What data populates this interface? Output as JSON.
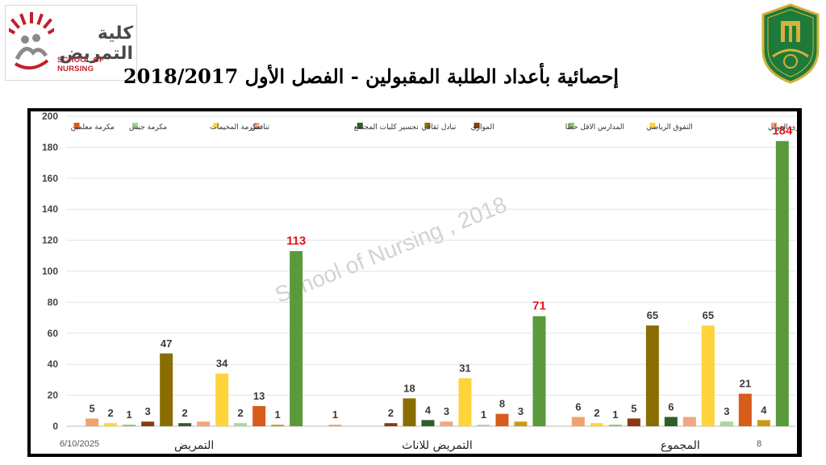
{
  "header": {
    "logo_arabic": "كلية التمريض",
    "logo_english": "SCHOOL OF NURSING",
    "title": "إحصائية بأعداد الطلبة المقبولين - الفصل الأول 2018/2017"
  },
  "watermark": "School of Nursing , 2018",
  "footer": {
    "date": "6/10/2025",
    "page": "8"
  },
  "colors": {
    "logo_red": "#c0202a",
    "emblem_green": "#1e7a3a",
    "emblem_gold": "#d4b13a",
    "highlight_label": "#e3151a"
  },
  "chart_data": {
    "type": "bar",
    "categories": [
      "التمريض",
      "التمريض للاناث",
      "المجموع"
    ],
    "ylim": [
      0,
      200
    ],
    "yticks": [
      0,
      20,
      40,
      60,
      80,
      100,
      120,
      140,
      160,
      180,
      200
    ],
    "grid": true,
    "legend_position": "top",
    "series": [
      {
        "name": "البرنامج الموازي الدولي",
        "color": "#f2a26b",
        "values": [
          5,
          1,
          6
        ],
        "labels": [
          "5",
          "1",
          "6"
        ]
      },
      {
        "name": "التفوق الرياضي",
        "color": "#ffd43b",
        "values": [
          2,
          0,
          2
        ],
        "labels": [
          "2",
          "",
          "2"
        ]
      },
      {
        "name": "المدارس الاقل حظا",
        "color": "#8dc96a",
        "values": [
          1,
          0,
          1
        ],
        "labels": [
          "1",
          "",
          "1"
        ]
      },
      {
        "name": "الموازي",
        "color": "#8b3a12",
        "values": [
          3,
          2,
          5
        ],
        "labels": [
          "3",
          "2",
          "5"
        ]
      },
      {
        "name": "تبادل ثقافي",
        "color": "#8a6d00",
        "values": [
          47,
          18,
          65
        ],
        "labels": [
          "47",
          "18",
          "65"
        ]
      },
      {
        "name": "تجسير كليات المجتمع",
        "color": "#2e5e2a",
        "values": [
          2,
          4,
          6
        ],
        "labels": [
          "2",
          "4",
          "6"
        ]
      },
      {
        "name": "تنافس",
        "color": "#f4a67e",
        "values": [
          3,
          3,
          6
        ],
        "labels": [
          "",
          "3",
          ""
        ]
      },
      {
        "name": "مكرمة المخيمات",
        "color": "#ffd43b",
        "values": [
          34,
          31,
          65
        ],
        "labels": [
          "34",
          "31",
          "65"
        ]
      },
      {
        "name": "مكرمة جيش",
        "color": "#a9d89a",
        "values": [
          2,
          1,
          3
        ],
        "labels": [
          "2",
          "1",
          "3"
        ]
      },
      {
        "name": "مكرمة معلمين",
        "color": "#d85c1a",
        "values": [
          13,
          8,
          21
        ],
        "labels": [
          "13",
          "8",
          "21"
        ]
      },
      {
        "name": "المجموع",
        "color": "#c89c12",
        "values": [
          1,
          3,
          4
        ],
        "labels": [
          "1",
          "3",
          "4"
        ]
      },
      {
        "name": "",
        "color": "#5a9a3a",
        "values": [
          113,
          71,
          184
        ],
        "labels": [
          "113",
          "71",
          "184"
        ],
        "label_color": "#e3151a"
      }
    ]
  }
}
